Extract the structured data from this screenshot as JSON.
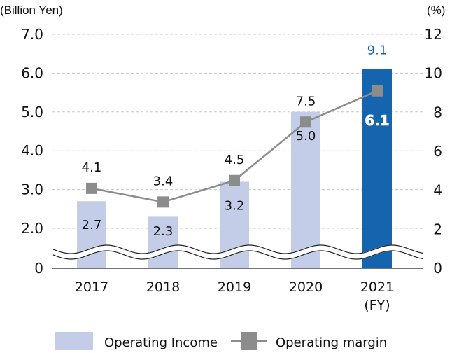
{
  "chart_data": {
    "type": "bar",
    "title": "",
    "categories": [
      "2017",
      "2018",
      "2019",
      "2020",
      "2021"
    ],
    "xlabel": "(FY)",
    "ylabel_left": "(Billion Yen)",
    "ylabel_right": "(%)",
    "ylim_left": [
      0,
      7.0
    ],
    "left_axis_break": [
      0,
      1.5
    ],
    "ylim_right": [
      0,
      12
    ],
    "left_ticks": [
      "0",
      "2.0",
      "3.0",
      "4.0",
      "5.0",
      "6.0",
      "7.0"
    ],
    "left_tick_values": [
      0,
      2,
      3,
      4,
      5,
      6,
      7
    ],
    "right_ticks": [
      "0",
      "2",
      "4",
      "6",
      "8",
      "10",
      "12"
    ],
    "right_tick_values": [
      0,
      2,
      4,
      6,
      8,
      10,
      12
    ],
    "grid": true,
    "legend_position": "bottom",
    "series": [
      {
        "name": "Operating Income",
        "type": "bar",
        "axis": "left",
        "values": [
          2.7,
          2.3,
          3.2,
          5.0,
          6.1
        ],
        "labels": [
          "2.7",
          "2.3",
          "3.2",
          "5.0",
          "6.1"
        ],
        "color": "#c3cde8",
        "highlight_color": "#1565ae",
        "highlight_index": 4
      },
      {
        "name": "Operating margin",
        "type": "line",
        "axis": "right",
        "values": [
          4.1,
          3.4,
          4.5,
          7.5,
          9.1
        ],
        "labels": [
          "4.1",
          "3.4",
          "4.5",
          "7.5",
          "9.1"
        ],
        "color": "#8c8c8c",
        "highlight_label_color": "#1565ae"
      }
    ]
  }
}
